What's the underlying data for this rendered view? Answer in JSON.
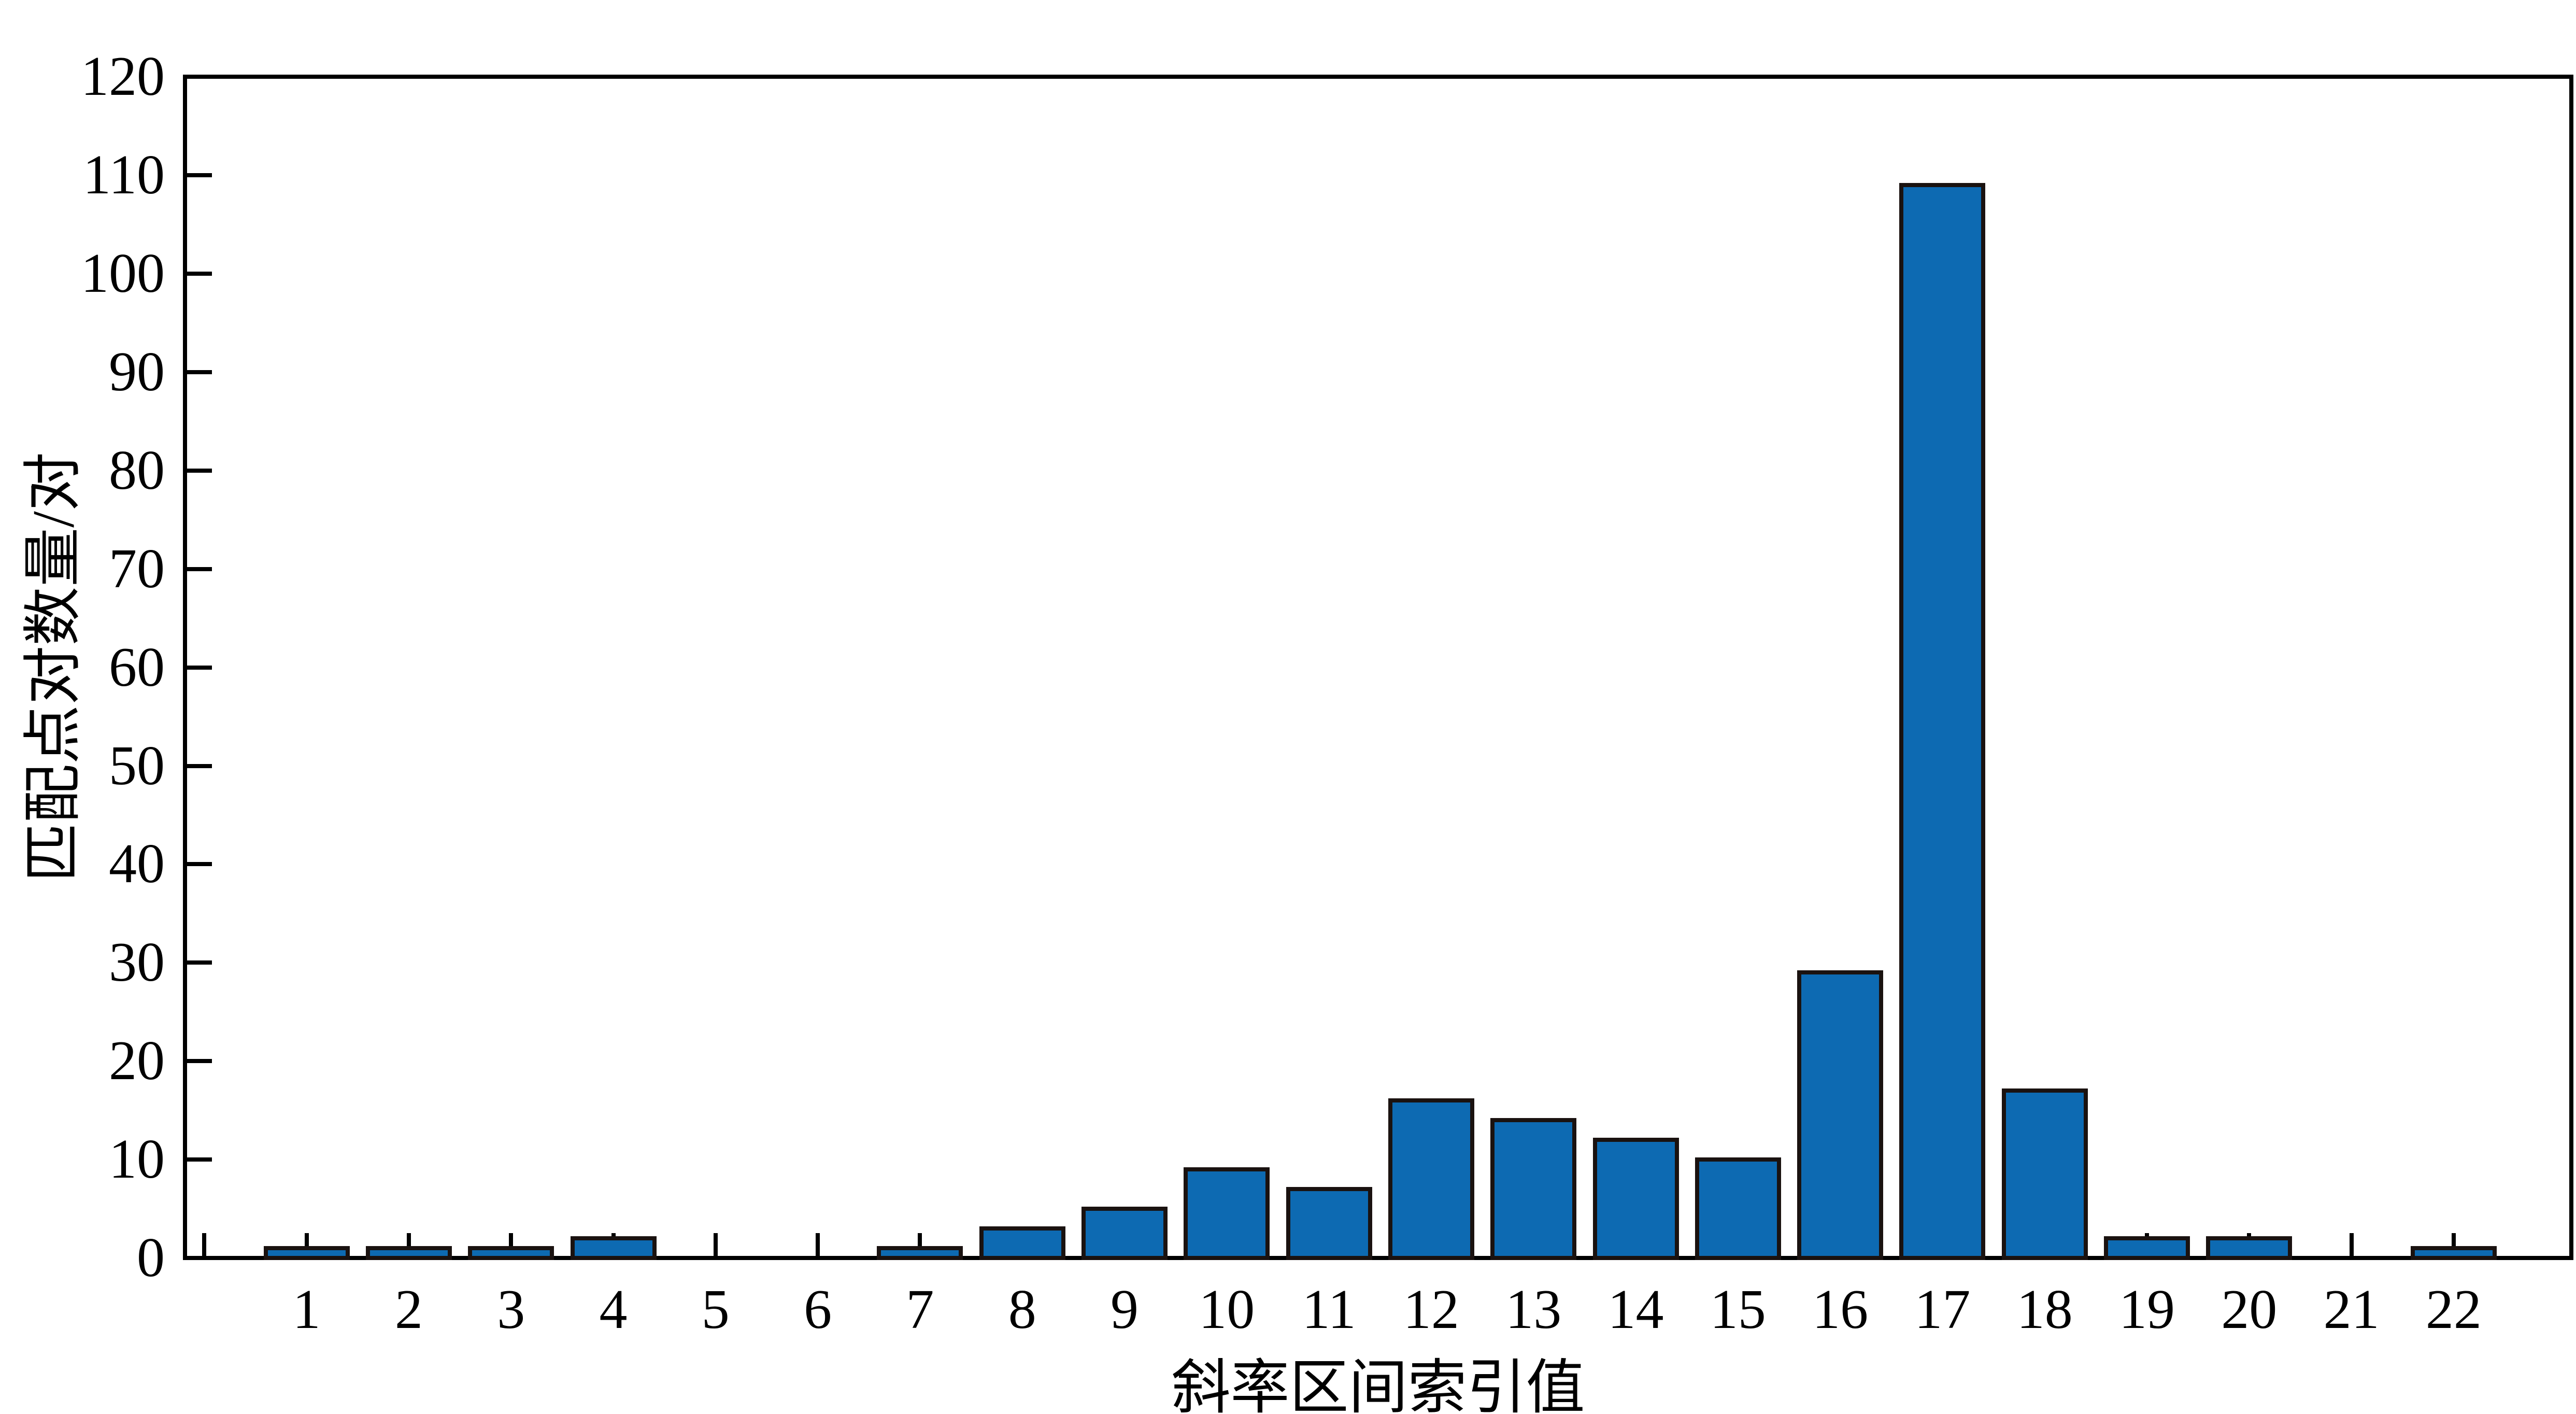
{
  "chart_data": {
    "type": "bar",
    "title": "",
    "xlabel": "斜率区间索引值",
    "ylabel": "匹配点对数量/对",
    "categories": [
      1,
      2,
      3,
      4,
      5,
      6,
      7,
      8,
      9,
      10,
      11,
      12,
      13,
      14,
      15,
      16,
      17,
      18,
      19,
      20,
      21,
      22
    ],
    "values": [
      1,
      1,
      1,
      2,
      0,
      0,
      1,
      3,
      5,
      9,
      7,
      16,
      14,
      12,
      10,
      29,
      109,
      17,
      2,
      2,
      0,
      1
    ],
    "ylim": [
      0,
      120
    ],
    "yticks": [
      0,
      10,
      20,
      30,
      40,
      50,
      60,
      70,
      80,
      90,
      100,
      110,
      120
    ],
    "x_tick_positions": [
      0,
      1,
      2,
      3,
      4,
      5,
      6,
      7,
      8,
      9,
      10,
      11,
      12,
      13,
      14,
      15,
      16,
      17,
      18,
      19,
      20,
      21,
      22
    ],
    "grid": false,
    "legend": "none",
    "bar_fill": "#0d6ab2",
    "bar_edge": "#1a1210",
    "axis_color": "#000000",
    "background": "#ffffff"
  }
}
